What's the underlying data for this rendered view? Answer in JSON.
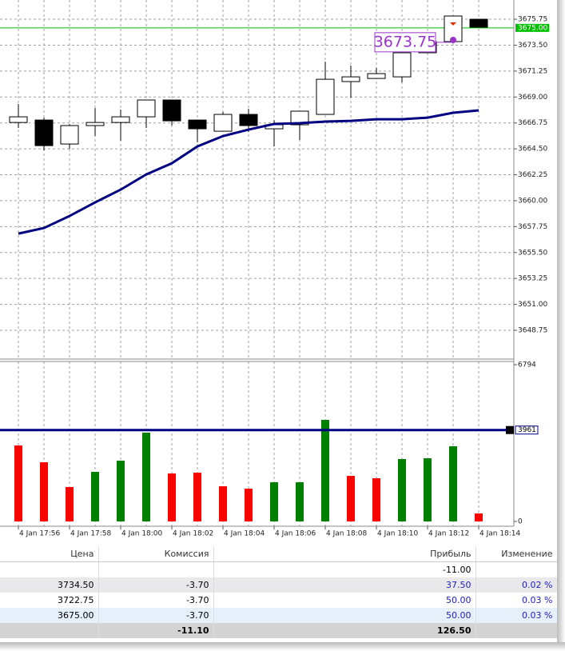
{
  "chart_data": [
    {
      "type": "candlestick",
      "categories": [
        "4 Jan 17:56",
        null,
        "4 Jan 17:58",
        null,
        "4 Jan 18:00",
        null,
        "4 Jan 18:02",
        null,
        "4 Jan 18:04",
        null,
        "4 Jan 18:06",
        null,
        "4 Jan 18:08",
        null,
        "4 Jan 18:10",
        null,
        "4 Jan 18:12",
        null,
        "4 Jan 18:14"
      ],
      "open": [
        3666.79,
        3667.0,
        3664.92,
        3666.52,
        3666.79,
        3667.28,
        3668.74,
        3667.0,
        3666.03,
        3667.49,
        3666.24,
        3666.59,
        3667.49,
        3670.34,
        3670.61,
        3670.75,
        3672.84,
        3673.81,
        3675.75
      ],
      "high": [
        3668.39,
        3667.21,
        3666.65,
        3668.04,
        3667.9,
        3668.74,
        3668.74,
        3667.0,
        3667.7,
        3667.97,
        3667.0,
        3667.77,
        3672.07,
        3671.73,
        3671.52,
        3673.25,
        3673.81,
        3676.03,
        3675.75
      ],
      "low": [
        3666.31,
        3664.36,
        3664.5,
        3665.61,
        3665.2,
        3666.3,
        3666.52,
        3665.06,
        3666.03,
        3665.96,
        3664.71,
        3665.27,
        3667.49,
        3668.95,
        3670.61,
        3670.27,
        3672.84,
        3673.81,
        3675.06
      ],
      "close": [
        3667.28,
        3664.78,
        3666.52,
        3666.79,
        3667.28,
        3668.74,
        3666.93,
        3666.24,
        3667.49,
        3666.52,
        3666.59,
        3667.77,
        3670.54,
        3670.75,
        3671.03,
        3672.84,
        3673.81,
        3676.03,
        3675.06
      ],
      "up_color": "#ffffff",
      "down_color": "#000000",
      "overlay": {
        "color": "#000080",
        "values": [
          3657.14,
          3657.63,
          3658.67,
          3659.85,
          3660.96,
          3662.28,
          3663.25,
          3664.71,
          3665.61,
          3666.17,
          3666.66,
          3666.73,
          3666.87,
          3666.93,
          3667.07,
          3667.07,
          3667.21,
          3667.63,
          3667.84
        ]
      },
      "ylim": [
        3646.25,
        3677.42
      ],
      "yticks": [
        3675.75,
        {
          "value": 3673.5,
          "label": "3673.50"
        },
        3671.25,
        {
          "value": 3669,
          "label": "3669.00"
        },
        3666.75,
        {
          "value": 3664.5,
          "label": "3664.50"
        },
        3662.25,
        {
          "value": 3660,
          "label": "3660.00"
        },
        3657.75,
        {
          "value": 3655.5,
          "label": "3655.50"
        },
        3653.25,
        {
          "value": 3651,
          "label": "3651.00"
        },
        3648.75
      ],
      "levels": [
        {
          "value": 3675,
          "label": "3675.00",
          "color": "#00c000"
        }
      ],
      "annotations": [
        {
          "value": 3673.75,
          "label": "3673.75",
          "color": "#9933cc"
        }
      ],
      "grid": true
    },
    {
      "type": "bar",
      "values": [
        3293,
        2565,
        1491,
        2149,
        2634,
        3848,
        2080,
        2114,
        1525,
        1421,
        1698,
        1698,
        4402,
        1976,
        1872,
        2704,
        2738,
        3258,
        347
      ],
      "colors": [
        "#ff0000",
        "#ff0000",
        "#ff0000",
        "#008000",
        "#008000",
        "#008000",
        "#ff0000",
        "#ff0000",
        "#ff0000",
        "#ff0000",
        "#008000",
        "#008000",
        "#008000",
        "#ff0000",
        "#ff0000",
        "#008000",
        "#008000",
        "#008000",
        "#ff0000"
      ],
      "ylim": [
        -208,
        6967
      ],
      "yticks": [
        6794,
        0
      ],
      "levels": [
        {
          "value": 3961,
          "color": "#000080"
        }
      ],
      "grid": true
    }
  ],
  "table": {
    "headers": [
      "Цена",
      "Комиссия",
      "Прибыль",
      "Изменение"
    ],
    "rows": [
      [
        null,
        null,
        "-11.00",
        null
      ],
      [
        "3734.50",
        "-3.70",
        "37.50",
        "0.02 %"
      ],
      [
        "3722.75",
        "-3.70",
        "50.00",
        "0.03 %"
      ],
      [
        "3675.00",
        "-3.70",
        "50.00",
        "0.03 %"
      ]
    ],
    "totals": [
      null,
      "-11.10",
      "126.50",
      null
    ]
  }
}
